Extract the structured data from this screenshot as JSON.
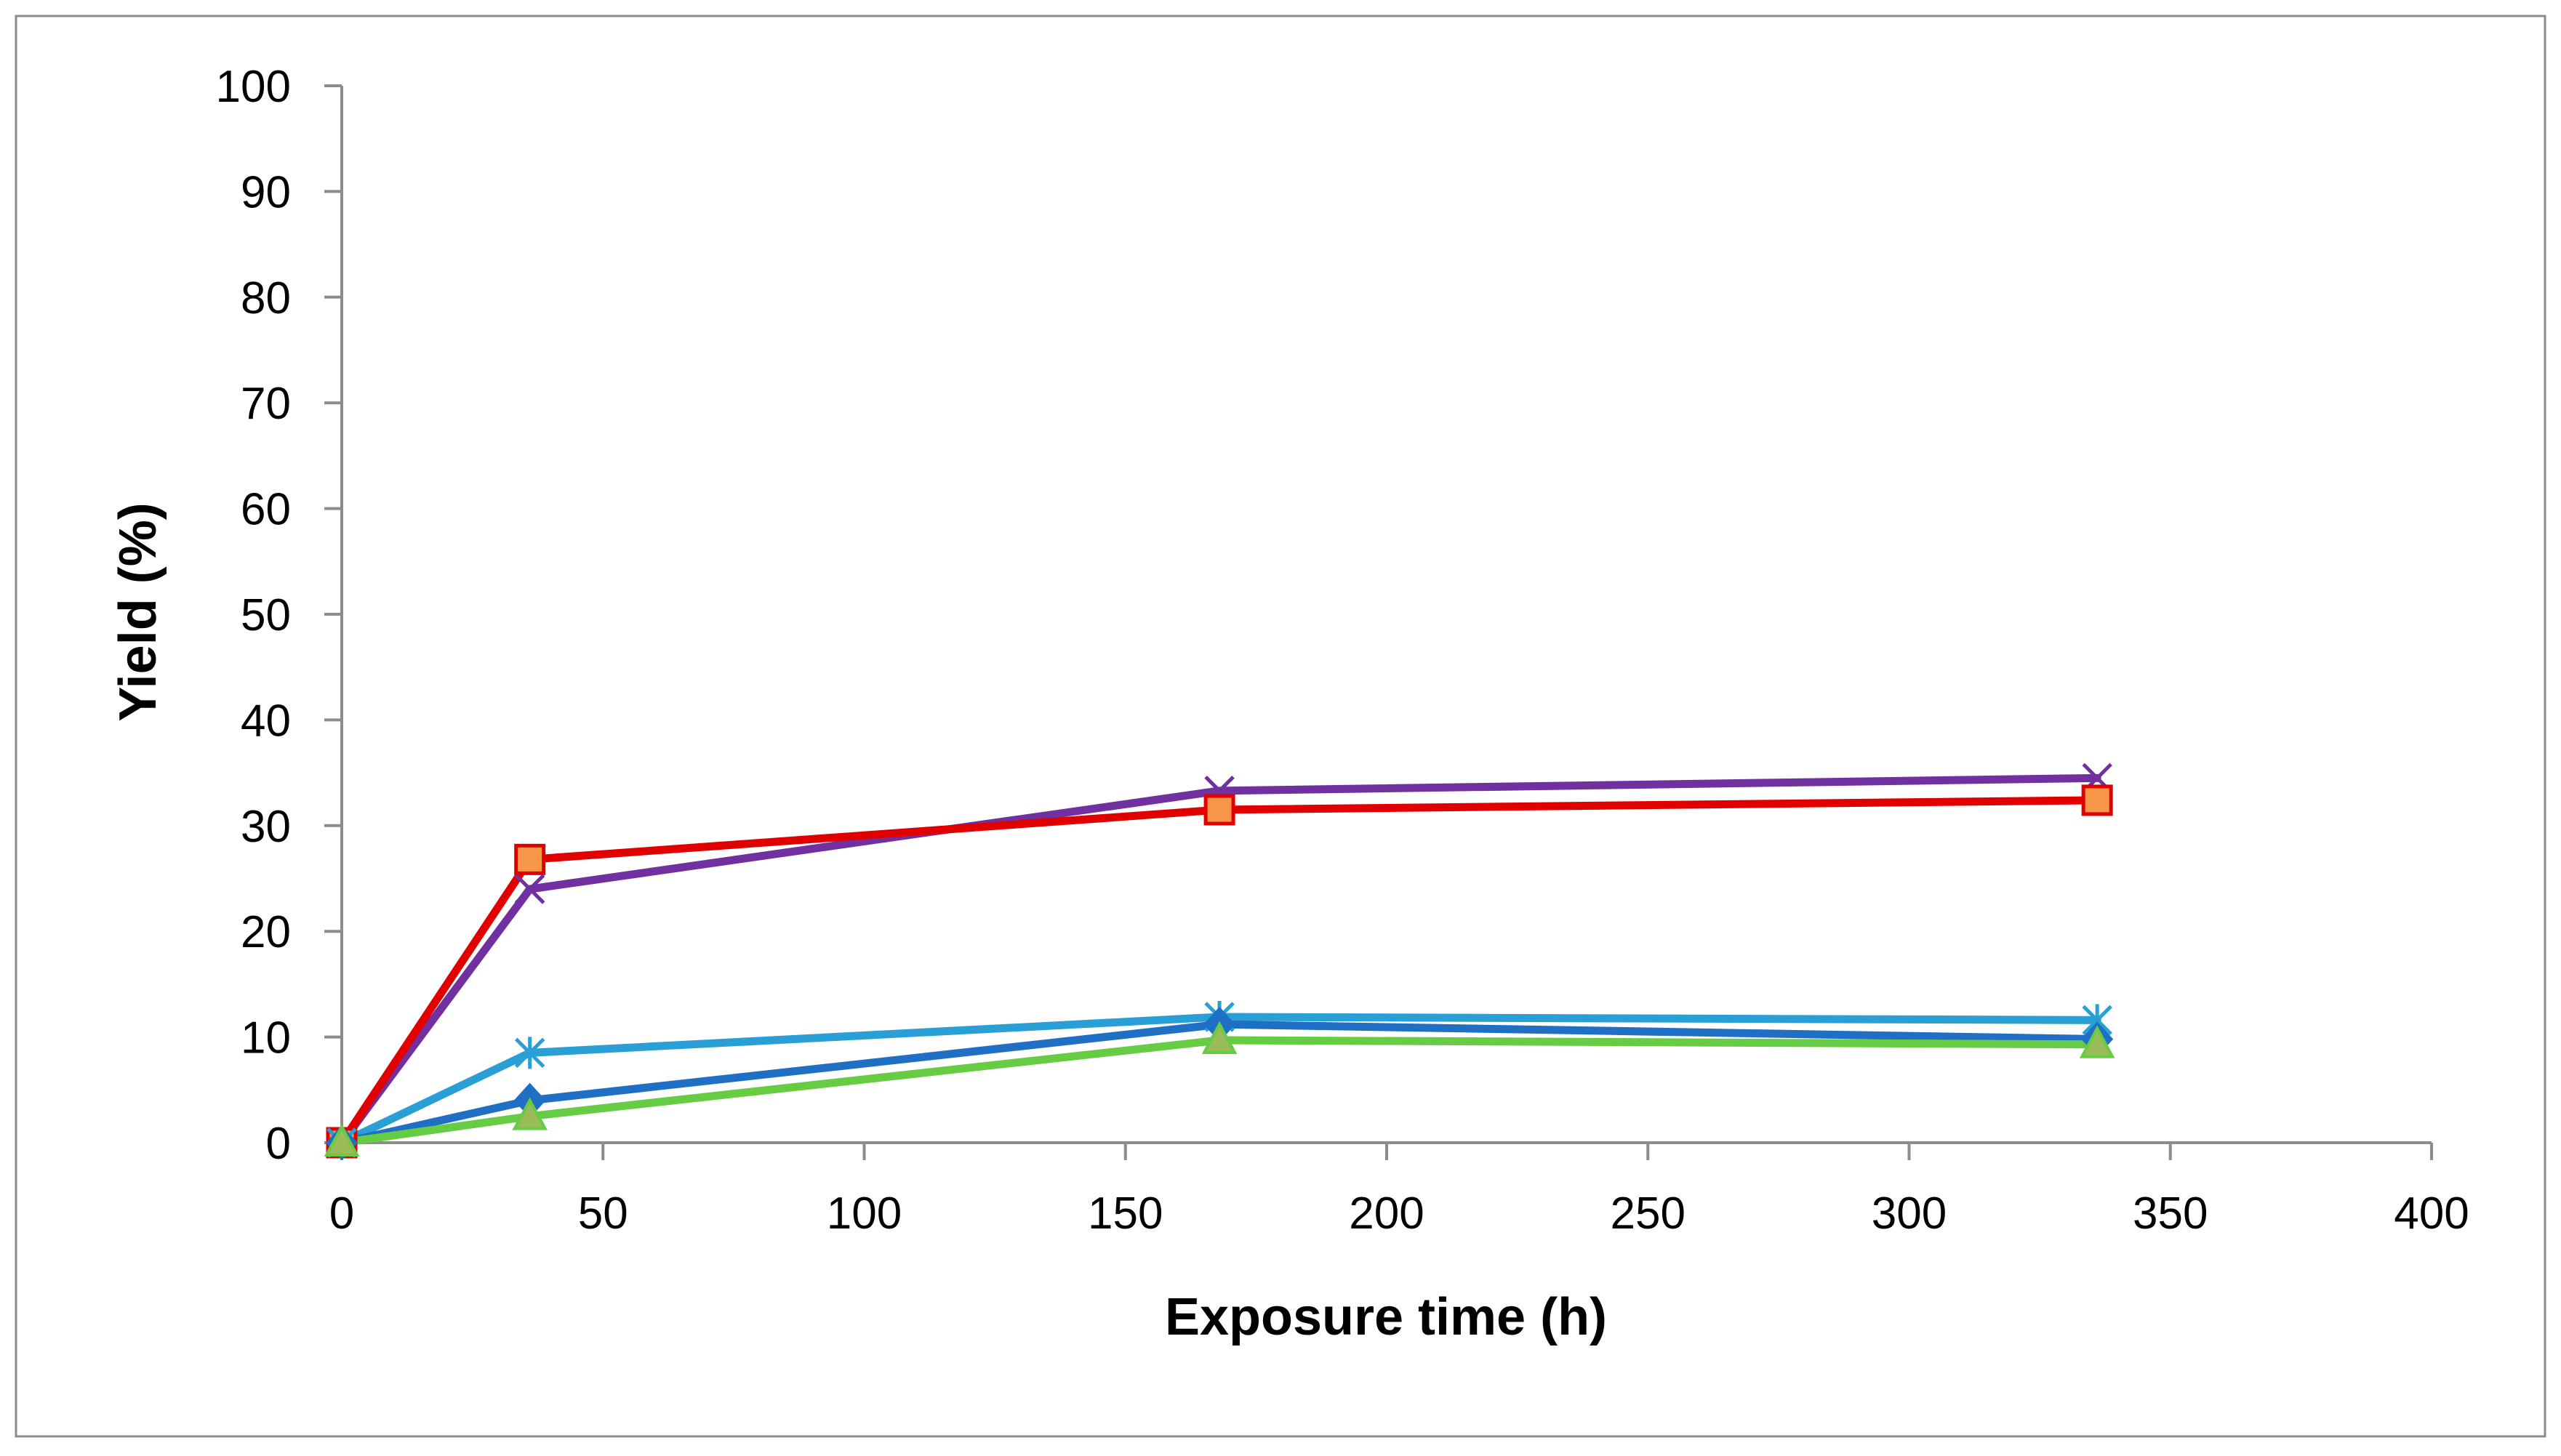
{
  "chart_data": {
    "type": "line",
    "title": "",
    "xlabel": "Exposure time (h)",
    "ylabel": "Yield (%)",
    "xlim": [
      0,
      400
    ],
    "ylim": [
      0,
      100
    ],
    "xticks": [
      0,
      50,
      100,
      150,
      200,
      250,
      300,
      350,
      400
    ],
    "yticks": [
      0,
      10,
      20,
      30,
      40,
      50,
      60,
      70,
      80,
      90,
      100
    ],
    "grid": false,
    "legend": "none",
    "series": [
      {
        "name": "purple",
        "color": "#7030A0",
        "marker": "x",
        "x": [
          0,
          36,
          168,
          336
        ],
        "y": [
          0,
          24,
          33.3,
          34.5
        ]
      },
      {
        "name": "red",
        "color": "#E00000",
        "marker": "square",
        "marker_fill": "#F79646",
        "x": [
          0,
          36,
          168,
          336
        ],
        "y": [
          0,
          26.8,
          31.5,
          32.4
        ]
      },
      {
        "name": "light-blue",
        "color": "#2A9FD6",
        "marker": "asterisk",
        "x": [
          0,
          36,
          168,
          336
        ],
        "y": [
          0,
          8.5,
          11.9,
          11.6
        ]
      },
      {
        "name": "dark-blue",
        "color": "#1F6FC5",
        "marker": "diamond",
        "x": [
          0,
          36,
          168,
          336
        ],
        "y": [
          0,
          4,
          11.2,
          9.8
        ]
      },
      {
        "name": "green",
        "color": "#66CC44",
        "marker": "triangle",
        "marker_fill": "#9BBB59",
        "x": [
          0,
          36,
          168,
          336
        ],
        "y": [
          0,
          2.5,
          9.7,
          9.3
        ]
      }
    ]
  }
}
